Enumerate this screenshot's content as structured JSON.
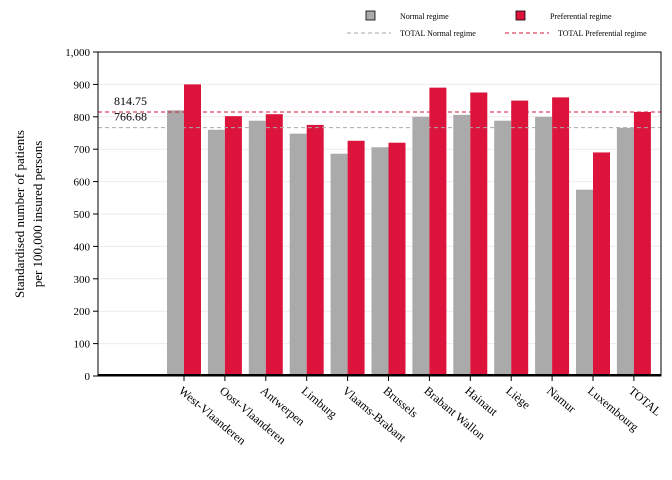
{
  "chart_data": {
    "type": "bar",
    "categories": [
      "West-Vlaanderen",
      "Oost-Vlaanderen",
      "Antwerpen",
      "Limburg",
      "Vlaams-Brabant",
      "Brussels",
      "Brabant Wallon",
      "Hainaut",
      "Liège",
      "Namur",
      "Luxembourg",
      "TOTAL"
    ],
    "series": [
      {
        "name": "Normal regime",
        "color": "#aaaaaa",
        "values": [
          820,
          760,
          788,
          748,
          686,
          706,
          800,
          806,
          788,
          800,
          575,
          766
        ]
      },
      {
        "name": "Preferential regime",
        "color": "#dc143c",
        "values": [
          900,
          802,
          808,
          775,
          726,
          720,
          890,
          875,
          850,
          860,
          690,
          815
        ]
      }
    ],
    "reference_lines": [
      {
        "name": "TOTAL Normal regime",
        "value": 766.68,
        "label": "766.68",
        "color": "#aaaaaa"
      },
      {
        "name": "TOTAL Preferential regime",
        "value": 814.75,
        "label": "814.75",
        "color": "#dc143c"
      }
    ],
    "ylabel_lines": [
      "Standardised number of patients",
      "per 100,000 insured persons"
    ],
    "xlabel": "",
    "title": "",
    "ylim": [
      0,
      1000
    ],
    "yticks": [
      0,
      100,
      200,
      300,
      400,
      500,
      600,
      700,
      800,
      900,
      1000
    ],
    "ytick_labels": [
      "0",
      "100",
      "200",
      "300",
      "400",
      "500",
      "600",
      "700",
      "800",
      "900",
      "1,000"
    ],
    "grid": true,
    "legend_position": "top-right"
  }
}
